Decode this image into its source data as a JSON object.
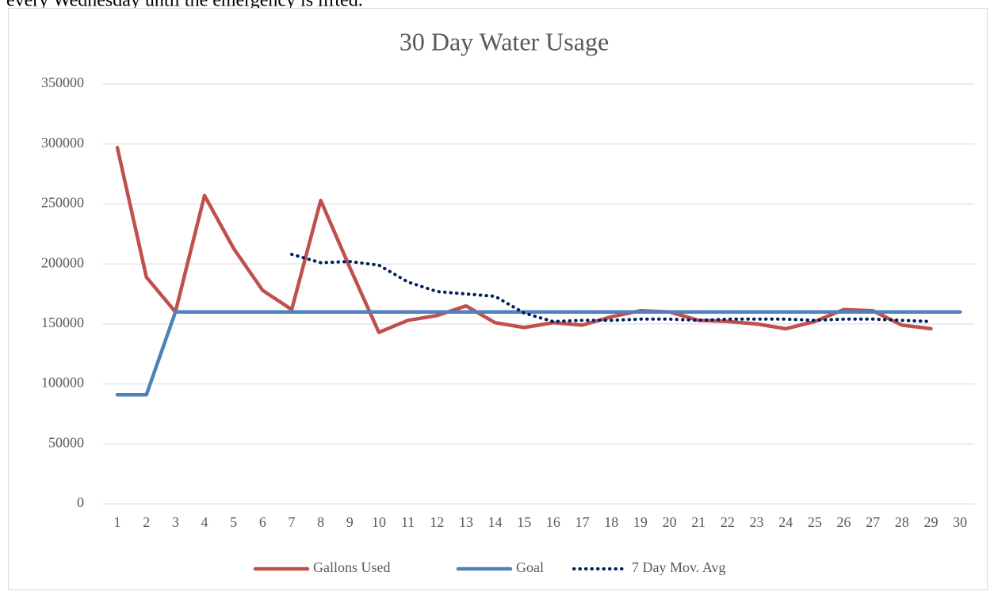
{
  "text_above": "every Wednesday until the emergency is lifted.",
  "chart_data": {
    "type": "line",
    "title": "30 Day Water Usage",
    "categories": [
      "1",
      "2",
      "3",
      "4",
      "5",
      "6",
      "7",
      "8",
      "9",
      "10",
      "11",
      "12",
      "13",
      "14",
      "15",
      "16",
      "17",
      "18",
      "19",
      "20",
      "21",
      "22",
      "23",
      "24",
      "25",
      "26",
      "27",
      "28",
      "29",
      "30"
    ],
    "series": [
      {
        "name": "Gallons Used",
        "color": "#c0504d",
        "style": "solid",
        "values": [
          297000,
          189000,
          160000,
          257000,
          213000,
          178000,
          162000,
          253000,
          197000,
          143000,
          153000,
          157000,
          165000,
          151000,
          147000,
          151000,
          149000,
          156000,
          161000,
          160000,
          153000,
          152000,
          150000,
          146000,
          152000,
          162000,
          161000,
          149000,
          146000,
          null
        ]
      },
      {
        "name": "Goal",
        "color": "#4f81bd",
        "style": "solid",
        "values": [
          91000,
          91000,
          160000,
          160000,
          160000,
          160000,
          160000,
          160000,
          160000,
          160000,
          160000,
          160000,
          160000,
          160000,
          160000,
          160000,
          160000,
          160000,
          160000,
          160000,
          160000,
          160000,
          160000,
          160000,
          160000,
          160000,
          160000,
          160000,
          160000,
          160000
        ]
      },
      {
        "name": "7 Day Mov. Avg",
        "color": "#002060",
        "style": "dotted",
        "values": [
          null,
          null,
          null,
          null,
          null,
          null,
          208000,
          201000,
          202000,
          199000,
          185000,
          177000,
          175000,
          173000,
          159000,
          152000,
          153000,
          153000,
          154000,
          154000,
          153000,
          154000,
          154000,
          154000,
          153000,
          154000,
          154000,
          153000,
          152000,
          null
        ]
      }
    ],
    "ylim": [
      0,
      350000
    ],
    "yticks": [
      0,
      50000,
      100000,
      150000,
      200000,
      250000,
      300000,
      350000
    ],
    "grid": true,
    "legend": "bottom"
  }
}
